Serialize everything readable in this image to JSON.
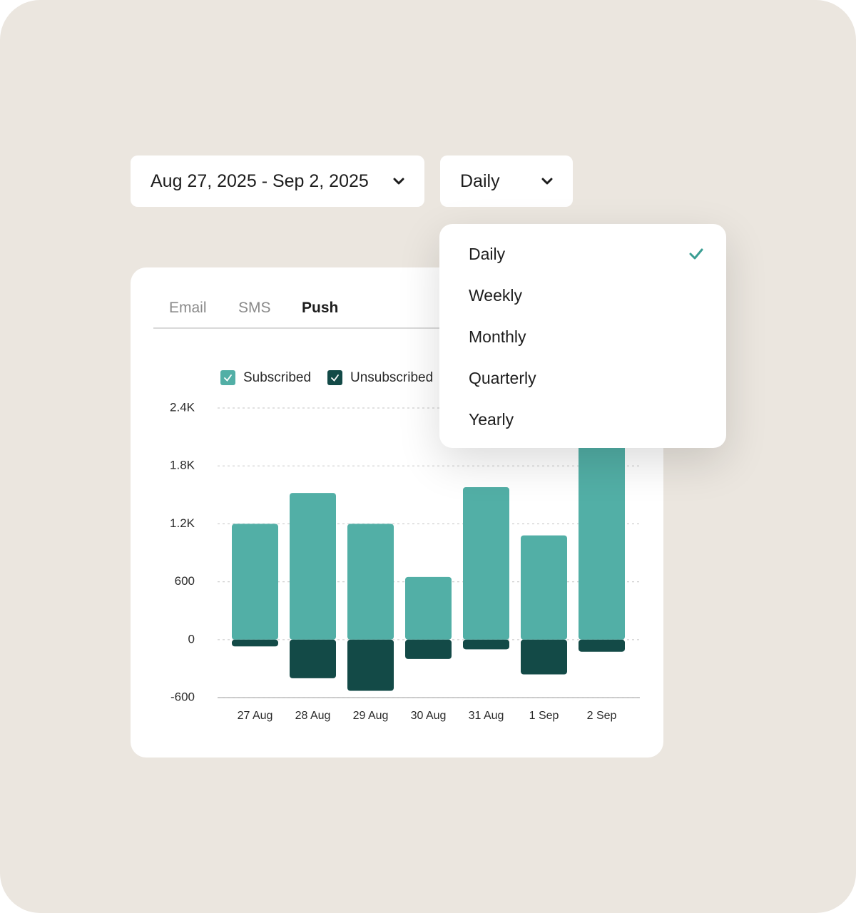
{
  "date_range": {
    "label": "Aug 27, 2025 - Sep 2, 2025"
  },
  "granularity": {
    "label": "Daily",
    "options": [
      "Daily",
      "Weekly",
      "Monthly",
      "Quarterly",
      "Yearly"
    ],
    "selected": 0
  },
  "tabs": {
    "items": [
      "Email",
      "SMS",
      "Push"
    ],
    "active": 2
  },
  "chart_data": {
    "type": "bar",
    "categories": [
      "27 Aug",
      "28 Aug",
      "29 Aug",
      "30 Aug",
      "31 Aug",
      "1 Sep",
      "2 Sep"
    ],
    "series": [
      {
        "name": "Subscribed",
        "color": "#52afa6",
        "values": [
          1200,
          1520,
          1200,
          650,
          1580,
          1080,
          2100
        ]
      },
      {
        "name": "Unsubscribed",
        "color": "#134a47",
        "values": [
          -70,
          -400,
          -530,
          -200,
          -100,
          -360,
          -125
        ]
      }
    ],
    "ylim": [
      -600,
      2400
    ],
    "yticks": [
      {
        "value": 2400,
        "label": "2.4K"
      },
      {
        "value": 1800,
        "label": "1.8K"
      },
      {
        "value": 1200,
        "label": "1.2K"
      },
      600,
      0,
      -600
    ],
    "grid": true
  }
}
